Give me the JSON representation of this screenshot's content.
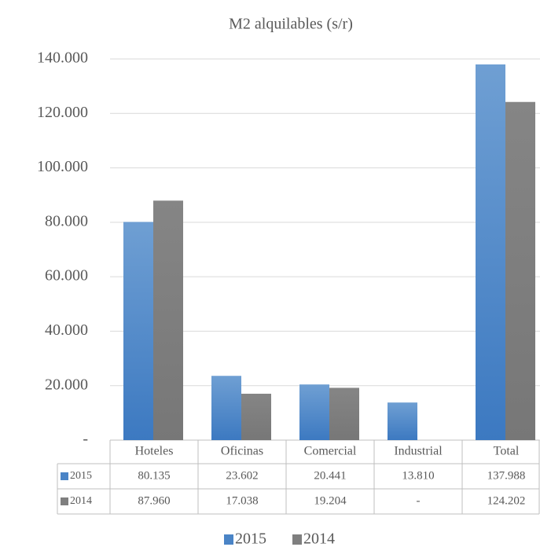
{
  "chart_data": {
    "type": "bar",
    "title": "M2 alquilables (s/r)",
    "categories": [
      "Hoteles",
      "Oficinas",
      "Comercial",
      "Industrial",
      "Total"
    ],
    "series": [
      {
        "name": "2015",
        "color": "#4a84c6",
        "values": [
          80135,
          23602,
          20441,
          13810,
          137988
        ],
        "value_labels": [
          "80.135",
          "23.602",
          "20.441",
          "13.810",
          "137.988"
        ]
      },
      {
        "name": "2014",
        "color": "#7f7f7f",
        "values": [
          87960,
          17038,
          19204,
          null,
          124202
        ],
        "value_labels": [
          "87.960",
          "17.038",
          "19.204",
          "-",
          "124.202"
        ]
      }
    ],
    "ylim": [
      0,
      140000
    ],
    "yticks": [
      {
        "value": 0,
        "label": "-"
      },
      {
        "value": 20000,
        "label": "20.000"
      },
      {
        "value": 40000,
        "label": "40.000"
      },
      {
        "value": 60000,
        "label": "60.000"
      },
      {
        "value": 80000,
        "label": "80.000"
      },
      {
        "value": 100000,
        "label": "100.000"
      },
      {
        "value": 120000,
        "label": "120.000"
      },
      {
        "value": 140000,
        "label": "140.000"
      }
    ],
    "grid": true,
    "legend": "bottom"
  }
}
